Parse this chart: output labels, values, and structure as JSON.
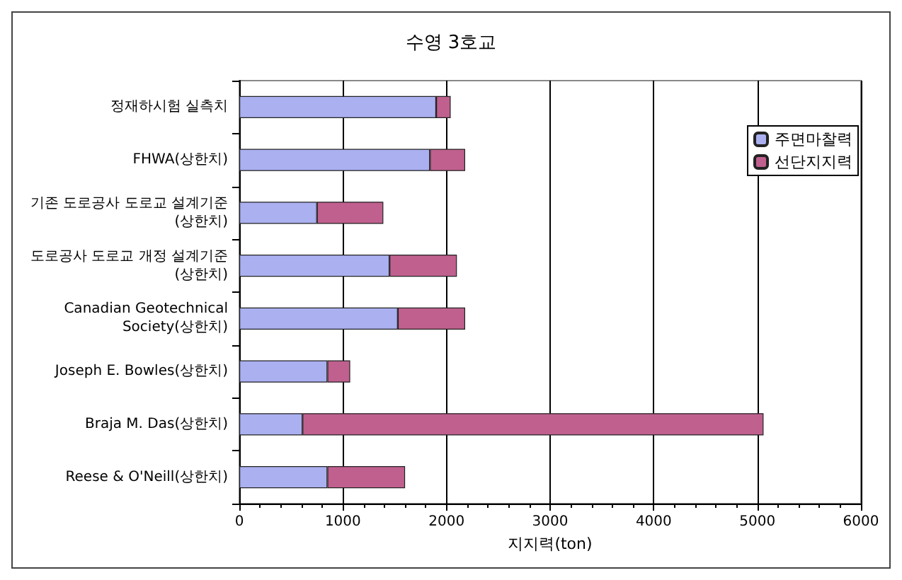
{
  "chart_data": {
    "type": "bar",
    "orientation": "horizontal",
    "stacked": true,
    "title": "수영 3호교",
    "xlabel": "지지력(ton)",
    "categories": [
      "정재하시험 실측치",
      "FHWA(상한치)",
      "기존 도로공사 도로교 설계기준\n(상한치)",
      "도로공사 도로교 개정 설계기준\n(상한치)",
      "Canadian Geotechnical\nSociety(상한치)",
      "Joseph E. Bowles(상한치)",
      "Braja M. Das(상한치)",
      "Reese & O'Neill(상한치)"
    ],
    "series": [
      {
        "name": "주면마찰력",
        "color": "#aab0f0",
        "values": [
          1900,
          1840,
          750,
          1450,
          1530,
          850,
          610,
          850
        ]
      },
      {
        "name": "선단지지력",
        "color": "#c0608e",
        "values": [
          140,
          340,
          640,
          650,
          650,
          220,
          4450,
          750
        ]
      }
    ],
    "xlim": [
      0,
      6000
    ],
    "xticks": [
      0,
      1000,
      2000,
      3000,
      4000,
      5000,
      6000
    ],
    "grid": "x",
    "legend": "top right"
  }
}
